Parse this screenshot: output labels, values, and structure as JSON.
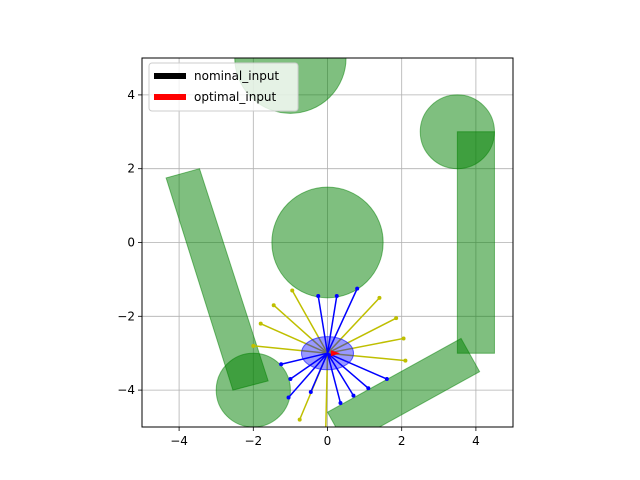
{
  "chart_data": {
    "type": "scatter",
    "title": "",
    "xlabel": "",
    "ylabel": "",
    "xlim": [
      -5,
      5
    ],
    "ylim": [
      -5,
      5
    ],
    "xticks": [
      -4,
      -2,
      0,
      2,
      4
    ],
    "yticks": [
      -4,
      -2,
      0,
      2,
      4
    ],
    "x_tick_labels": [
      "−4",
      "−2",
      "0",
      "2",
      "4"
    ],
    "y_tick_labels": [
      "−4",
      "−2",
      "0",
      "2",
      "4"
    ],
    "grid": true,
    "aspect": "equal",
    "legend": {
      "placement": "top-left",
      "entries": [
        {
          "name": "nominal_input",
          "color": "#000000"
        },
        {
          "name": "optimal_input",
          "color": "#ff0000"
        }
      ]
    },
    "obstacle_color": "#008000",
    "obstacles": [
      {
        "kind": "circle",
        "cx": -1,
        "cy": 5,
        "r": 1.5
      },
      {
        "kind": "circle",
        "cx": 3.5,
        "cy": 3,
        "r": 1
      },
      {
        "kind": "circle",
        "cx": 0,
        "cy": 0,
        "r": 1.5
      },
      {
        "kind": "circle",
        "cx": -2,
        "cy": -4,
        "r": 1
      },
      {
        "kind": "polygon",
        "points": [
          [
            3.5,
            3
          ],
          [
            4.5,
            3
          ],
          [
            4.5,
            -3
          ],
          [
            3.5,
            -3
          ]
        ]
      },
      {
        "kind": "polygon",
        "points": [
          [
            -4.35,
            1.75
          ],
          [
            -3.45,
            2
          ],
          [
            -1.6,
            -3.75
          ],
          [
            -2.55,
            -4
          ]
        ]
      },
      {
        "kind": "polygon",
        "points": [
          [
            0,
            -4.6
          ],
          [
            3.6,
            -2.6
          ],
          [
            4.1,
            -3.5
          ],
          [
            0.5,
            -5.5
          ]
        ]
      }
    ],
    "robot": {
      "cx": 0,
      "cy": -3,
      "rx": 0.7,
      "ry": 0.45,
      "color": "#0000ff"
    },
    "nominal_rays": {
      "color": "#bfbf00",
      "origin": [
        0,
        -3
      ],
      "endpoints": [
        [
          -0.95,
          -1.3
        ],
        [
          -1.45,
          -1.7
        ],
        [
          -1.8,
          -2.2
        ],
        [
          -2.0,
          -2.8
        ],
        [
          1.4,
          -1.5
        ],
        [
          1.85,
          -2.05
        ],
        [
          2.05,
          -2.6
        ],
        [
          2.1,
          -3.2
        ],
        [
          -0.75,
          -4.8
        ],
        [
          -0.05,
          -5.2
        ]
      ]
    },
    "optimal_rays": {
      "color": "#0000ff",
      "origin": [
        0,
        -3
      ],
      "endpoints": [
        [
          -0.25,
          -1.45
        ],
        [
          0.25,
          -1.45
        ],
        [
          0.8,
          -1.25
        ],
        [
          -1.25,
          -3.3
        ],
        [
          -1.0,
          -3.7
        ],
        [
          -1.05,
          -4.2
        ],
        [
          -0.45,
          -4.05
        ],
        [
          0.35,
          -4.35
        ],
        [
          0.7,
          -4.15
        ],
        [
          1.1,
          -3.95
        ],
        [
          1.6,
          -3.7
        ]
      ]
    },
    "goal_marker": {
      "x": 0.2,
      "y": -3.0,
      "color": "#ff0000"
    }
  }
}
